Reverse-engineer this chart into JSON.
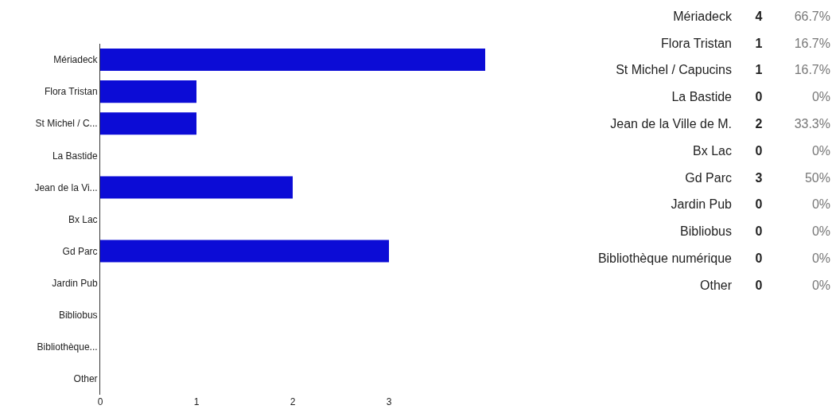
{
  "chart_data": [
    {
      "type": "bar",
      "orientation": "horizontal",
      "categories": [
        "Mériadeck",
        "Flora Tristan",
        "St Michel / C...",
        "La Bastide",
        "Jean de la Vi...",
        "Bx Lac",
        "Gd Parc",
        "Jardin Pub",
        "Bibliobus",
        "Bibliothèque...",
        "Other"
      ],
      "values": [
        4,
        1,
        1,
        0,
        2,
        0,
        3,
        0,
        0,
        0,
        0
      ],
      "color": "#0c0cd6",
      "xlim": [
        0,
        4
      ],
      "xticks": [
        0,
        1,
        2,
        3
      ],
      "grid": false,
      "legend": false
    },
    {
      "type": "other",
      "annotations": [
        "Mériadeck",
        "4",
        "66.7%",
        "Flora Tristan",
        "1",
        "16.7%",
        "St Michel / Capucins",
        "1",
        "16.7%",
        "La Bastide",
        "0",
        "0%",
        "Jean de la Ville de M.",
        "2",
        "33.3%",
        "Bx Lac",
        "0",
        "0%",
        "Gd Parc",
        "3",
        "50%",
        "Jardin Pub",
        "0",
        "0%",
        "Bibliobus",
        "0",
        "0%",
        "Bibliothèque numérique",
        "0",
        "0%",
        "Other",
        "0",
        "0%"
      ]
    }
  ]
}
